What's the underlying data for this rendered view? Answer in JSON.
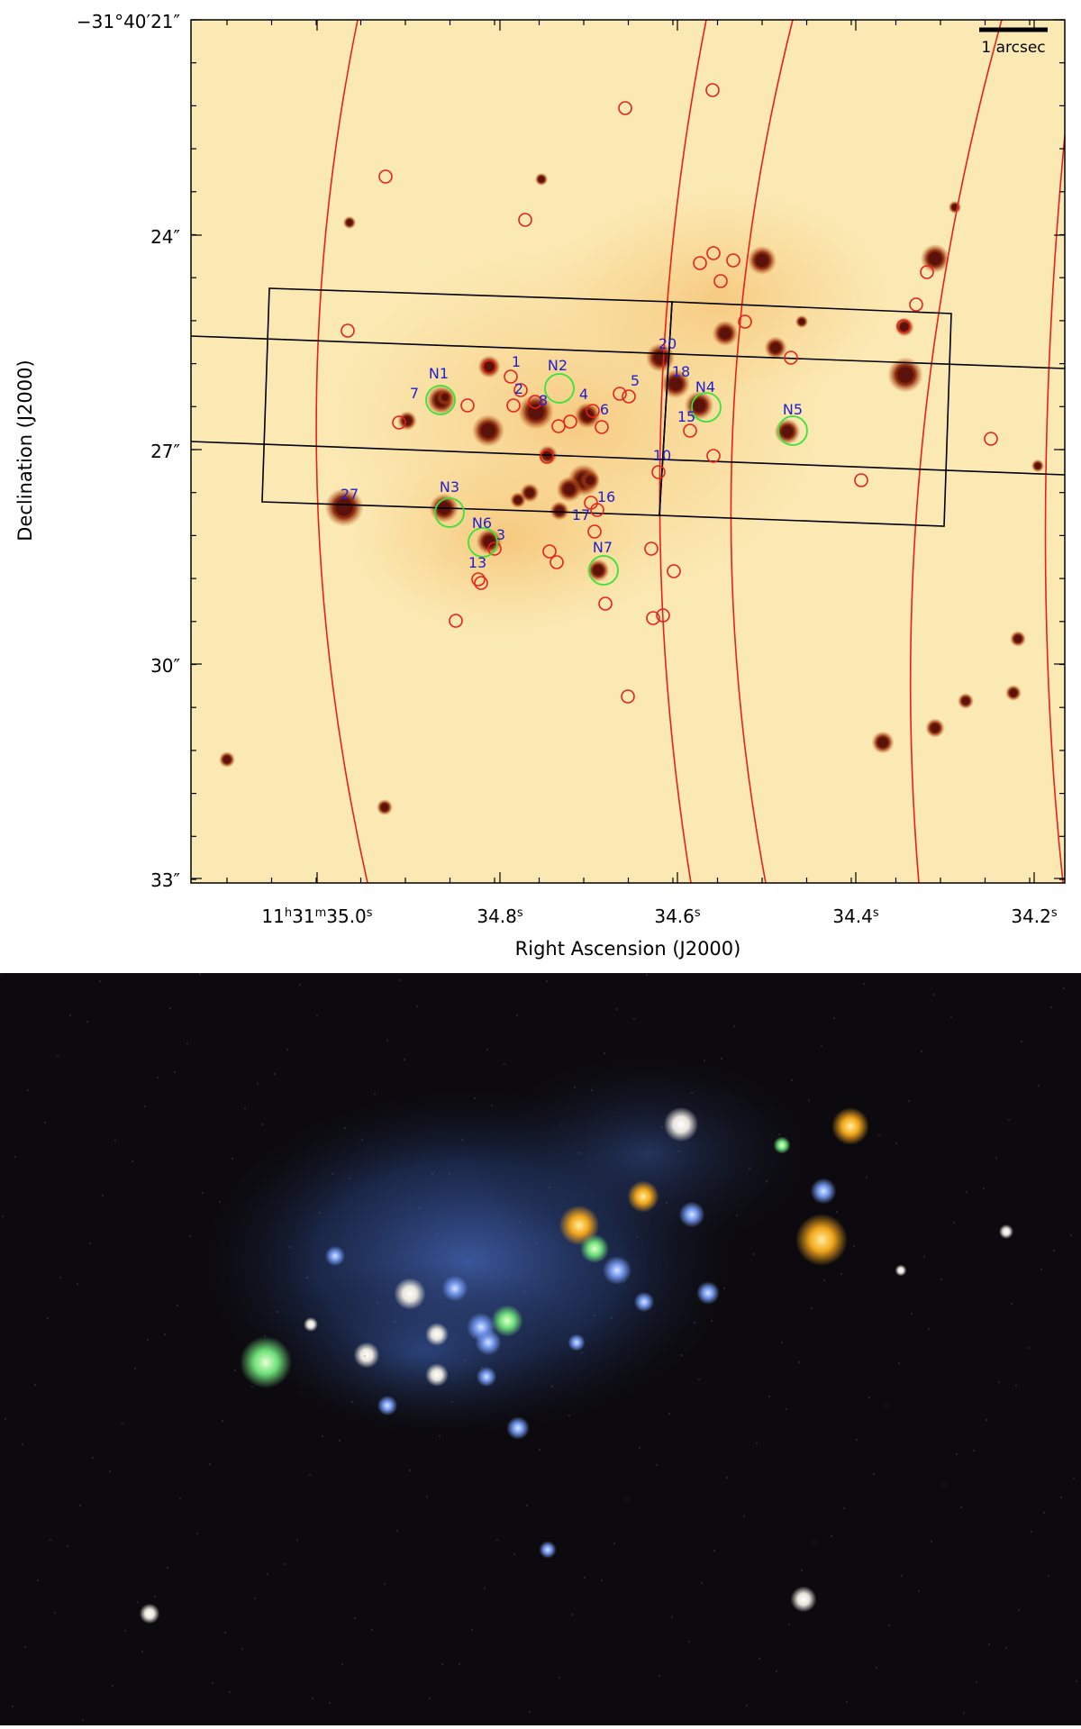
{
  "top_panel": {
    "y_tick_labels": [
      "−31°40′21″",
      "24″",
      "27″",
      "30″",
      "33″"
    ],
    "x_tick_labels": [
      "11h31m35.0s",
      "34.8s",
      "34.6s",
      "34.4s",
      "34.2s"
    ],
    "x_tick_parts": [
      [
        "11",
        "h",
        "31",
        "m",
        "35.0",
        "s"
      ],
      [
        "34.8",
        "s"
      ],
      [
        "34.6",
        "s"
      ],
      [
        "34.4",
        "s"
      ],
      [
        "34.2",
        "s"
      ]
    ],
    "x_axis_label": "Right Ascension (J2000)",
    "y_axis_label": "Declination (J2000)",
    "scalebar_label": "1 arcsec",
    "colors": {
      "background": "#fbe9b4",
      "red_marker": "#e8201c",
      "green_marker": "#39e339",
      "label_blue": "#1f1fd0",
      "aperture_black": "#000000"
    },
    "red_labels": [
      "1",
      "2",
      "4",
      "5",
      "6",
      "7",
      "8",
      "10",
      "13",
      "15",
      "16",
      "17",
      "18",
      "20",
      "27",
      "3"
    ],
    "green_labels": [
      "N1",
      "N2",
      "N3",
      "N4",
      "N5",
      "N6",
      "N7"
    ]
  },
  "bottom_panel": {
    "description_colors": {
      "background": "#0c0a0e",
      "glow_blue": "#3c5fb8",
      "star_orange": "#f2a51a",
      "star_green": "#6ee07a",
      "star_white": "#f2f0ea"
    }
  }
}
